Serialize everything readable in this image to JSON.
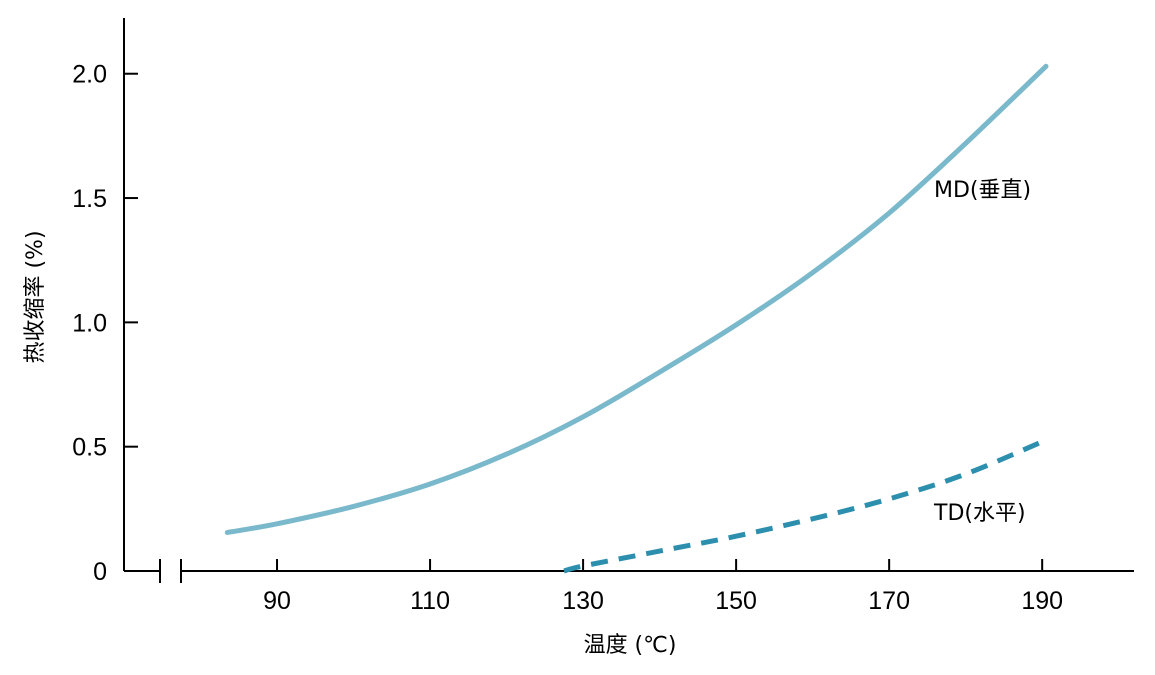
{
  "chart_data": {
    "type": "line",
    "xlabel": "温度 (℃)",
    "ylabel": "热收缩率 (%)",
    "xlim": [
      70,
      202
    ],
    "ylim": [
      0,
      2.2
    ],
    "x_ticks": [
      90,
      110,
      130,
      150,
      170,
      190
    ],
    "y_ticks": [
      0,
      0.5,
      1.0,
      1.5,
      2.0
    ],
    "x_tick_labels": [
      "90",
      "110",
      "130",
      "150",
      "170",
      "190"
    ],
    "y_tick_labels": [
      "0",
      "0.5",
      "1.0",
      "1.5",
      "2.0"
    ],
    "axis_break": true,
    "grid": false,
    "legend": "inline labels",
    "series": [
      {
        "name": "MD(垂直)",
        "style": "solid",
        "color": "#7ab8cc",
        "x": [
          83.5,
          90,
          100,
          110,
          120,
          130,
          140,
          150,
          160,
          170,
          180,
          190.5
        ],
        "y": [
          0.155,
          0.19,
          0.26,
          0.35,
          0.47,
          0.62,
          0.8,
          0.99,
          1.2,
          1.44,
          1.72,
          2.03
        ]
      },
      {
        "name": "TD(水平)",
        "style": "dashed",
        "color": "#2d8fae",
        "x": [
          127.5,
          130,
          140,
          150,
          160,
          170,
          180,
          190
        ],
        "y": [
          0.0,
          0.02,
          0.08,
          0.14,
          0.21,
          0.29,
          0.39,
          0.52
        ]
      }
    ]
  }
}
